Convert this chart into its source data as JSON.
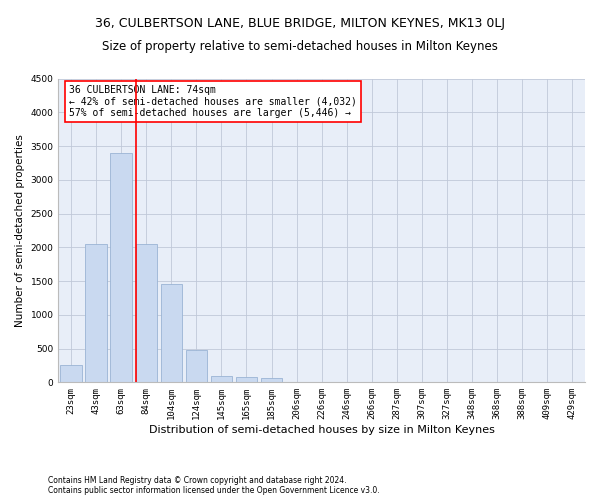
{
  "title": "36, CULBERTSON LANE, BLUE BRIDGE, MILTON KEYNES, MK13 0LJ",
  "subtitle": "Size of property relative to semi-detached houses in Milton Keynes",
  "xlabel": "Distribution of semi-detached houses by size in Milton Keynes",
  "ylabel": "Number of semi-detached properties",
  "categories": [
    "23sqm",
    "43sqm",
    "63sqm",
    "84sqm",
    "104sqm",
    "124sqm",
    "145sqm",
    "165sqm",
    "185sqm",
    "206sqm",
    "226sqm",
    "246sqm",
    "266sqm",
    "287sqm",
    "307sqm",
    "327sqm",
    "348sqm",
    "368sqm",
    "388sqm",
    "409sqm",
    "429sqm"
  ],
  "values": [
    250,
    2050,
    3400,
    2050,
    1450,
    480,
    100,
    80,
    60,
    0,
    0,
    0,
    0,
    0,
    0,
    0,
    0,
    0,
    0,
    0,
    0
  ],
  "bar_color": "#c9d9f0",
  "bar_edge_color": "#9ab4d4",
  "vline_color": "red",
  "vline_xindex": 3,
  "ylim": [
    0,
    4500
  ],
  "yticks": [
    0,
    500,
    1000,
    1500,
    2000,
    2500,
    3000,
    3500,
    4000,
    4500
  ],
  "annotation_text": "36 CULBERTSON LANE: 74sqm\n← 42% of semi-detached houses are smaller (4,032)\n57% of semi-detached houses are larger (5,446) →",
  "annotation_box_color": "white",
  "annotation_box_edge_color": "red",
  "bg_color": "white",
  "plot_bg_color": "#e8eef8",
  "grid_color": "#c0c8d8",
  "footer_line1": "Contains HM Land Registry data © Crown copyright and database right 2024.",
  "footer_line2": "Contains public sector information licensed under the Open Government Licence v3.0.",
  "title_fontsize": 9,
  "subtitle_fontsize": 8.5,
  "tick_label_fontsize": 6.5,
  "ylabel_fontsize": 7.5,
  "xlabel_fontsize": 8,
  "annotation_fontsize": 7,
  "footer_fontsize": 5.5
}
